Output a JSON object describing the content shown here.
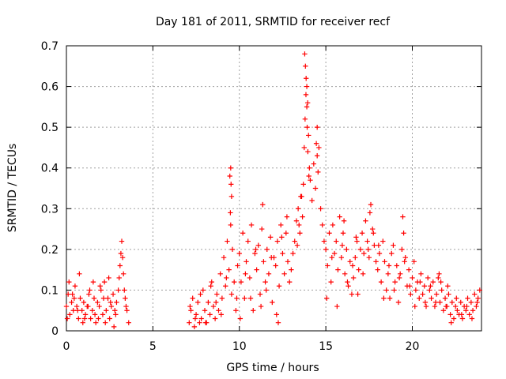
{
  "chart_data": {
    "type": "scatter",
    "title": "Day 181 of 2011, SRMTID for receiver recf",
    "xlabel": "GPS time / hours",
    "ylabel": "SRMTID / TECUs",
    "xlim": [
      0,
      24
    ],
    "ylim": [
      0,
      0.7
    ],
    "xticks": [
      0,
      5,
      10,
      15,
      20
    ],
    "xtick_labels": [
      "0",
      "5",
      "10",
      "15",
      "20"
    ],
    "yticks": [
      0,
      0.1,
      0.2,
      0.3,
      0.4,
      0.5,
      0.6,
      0.7
    ],
    "ytick_labels": [
      "0",
      "0.1",
      "0.2",
      "0.3",
      "0.4",
      "0.5",
      "0.6",
      "0.7"
    ],
    "grid": true,
    "marker": "plus",
    "color": "#ff0000",
    "series": [
      {
        "x": [
          0.0,
          0.1,
          0.2,
          0.3,
          0.4,
          0.5,
          0.6,
          0.7,
          0.8,
          0.9,
          1.0,
          1.1,
          1.2,
          1.3,
          1.4,
          1.5,
          1.6,
          1.7,
          1.8,
          1.9,
          2.0,
          2.1,
          2.2,
          2.3,
          2.4,
          2.5,
          2.6,
          2.7,
          2.8,
          2.9,
          3.0,
          3.05,
          3.1,
          3.15,
          3.2,
          3.25,
          3.3,
          3.35,
          3.4,
          3.5,
          3.6,
          0.15,
          0.45,
          0.75,
          1.05,
          1.35,
          1.65,
          1.95,
          2.25,
          2.55,
          2.85,
          0.05,
          0.35,
          0.65,
          0.95,
          1.25,
          1.55,
          1.85,
          2.15,
          2.45,
          2.75,
          3.45,
          7.1,
          7.2,
          7.3,
          7.4,
          7.5,
          7.6,
          7.7,
          7.8,
          7.9,
          8.0,
          8.1,
          8.2,
          8.3,
          8.4,
          8.5,
          8.6,
          8.7,
          8.8,
          8.9,
          9.0,
          9.1,
          9.2,
          9.3,
          9.4,
          9.5,
          9.6,
          9.7,
          9.8,
          9.9,
          7.15,
          7.45,
          7.75,
          8.05,
          8.35,
          8.65,
          8.95,
          9.25,
          9.55,
          9.85,
          9.5,
          9.45,
          9.55,
          9.48,
          9.52,
          10.0,
          10.1,
          10.2,
          10.3,
          10.4,
          10.5,
          10.6,
          10.7,
          10.8,
          10.9,
          11.0,
          11.1,
          11.2,
          11.3,
          11.4,
          11.5,
          11.6,
          11.7,
          11.8,
          11.9,
          12.0,
          12.1,
          12.2,
          12.3,
          12.4,
          12.5,
          12.6,
          12.7,
          12.8,
          12.9,
          10.05,
          10.35,
          10.65,
          10.95,
          11.25,
          11.55,
          11.85,
          12.15,
          12.45,
          12.75,
          11.35,
          12.25,
          13.0,
          13.1,
          13.2,
          13.3,
          13.4,
          13.5,
          13.6,
          13.7,
          13.75,
          13.8,
          13.85,
          13.9,
          13.95,
          14.0,
          14.05,
          14.1,
          14.2,
          14.3,
          14.4,
          14.5,
          14.6,
          14.7,
          14.8,
          14.9,
          13.78,
          13.82,
          13.86,
          13.9,
          13.92,
          13.96,
          14.02,
          14.45,
          14.5,
          14.55,
          13.65,
          13.55,
          13.45,
          13.35,
          15.0,
          15.1,
          15.2,
          15.3,
          15.4,
          15.5,
          15.6,
          15.7,
          15.8,
          15.9,
          16.0,
          16.1,
          16.2,
          16.3,
          16.4,
          16.5,
          16.6,
          16.7,
          16.8,
          16.9,
          17.0,
          17.1,
          17.2,
          17.3,
          17.4,
          17.5,
          17.6,
          17.7,
          17.8,
          17.9,
          15.05,
          15.35,
          15.65,
          15.95,
          16.25,
          16.55,
          16.85,
          17.15,
          17.45,
          17.75,
          16.05,
          16.75,
          17.55,
          18.0,
          18.1,
          18.2,
          18.3,
          18.4,
          18.5,
          18.6,
          18.7,
          18.8,
          18.9,
          19.0,
          19.1,
          19.2,
          19.3,
          19.4,
          19.5,
          19.6,
          19.7,
          19.8,
          19.9,
          20.0,
          20.1,
          20.2,
          20.3,
          20.4,
          20.5,
          20.6,
          20.7,
          20.8,
          20.9,
          18.05,
          18.35,
          18.65,
          18.95,
          19.25,
          19.55,
          19.85,
          20.15,
          20.45,
          20.75,
          19.45,
          21.0,
          21.1,
          21.2,
          21.3,
          21.4,
          21.5,
          21.6,
          21.7,
          21.8,
          21.9,
          22.0,
          22.1,
          22.2,
          22.3,
          22.4,
          22.5,
          22.6,
          22.7,
          22.8,
          22.9,
          23.0,
          23.1,
          23.2,
          23.3,
          23.4,
          23.5,
          23.6,
          23.7,
          23.8,
          23.9,
          21.05,
          21.35,
          21.65,
          21.95,
          22.25,
          22.55,
          22.85,
          23.15,
          23.45,
          23.75,
          21.55,
          22.05
        ],
        "y": [
          0.06,
          0.09,
          0.04,
          0.07,
          0.05,
          0.11,
          0.06,
          0.03,
          0.08,
          0.05,
          0.07,
          0.04,
          0.06,
          0.09,
          0.03,
          0.05,
          0.08,
          0.02,
          0.07,
          0.06,
          0.1,
          0.04,
          0.12,
          0.05,
          0.08,
          0.03,
          0.06,
          0.09,
          0.05,
          0.07,
          0.1,
          0.13,
          0.16,
          0.19,
          0.22,
          0.18,
          0.14,
          0.1,
          0.08,
          0.05,
          0.02,
          0.12,
          0.08,
          0.14,
          0.03,
          0.1,
          0.04,
          0.11,
          0.02,
          0.07,
          0.04,
          0.03,
          0.09,
          0.05,
          0.02,
          0.06,
          0.12,
          0.03,
          0.08,
          0.13,
          0.01,
          0.06,
          0.02,
          0.05,
          0.08,
          0.01,
          0.04,
          0.07,
          0.02,
          0.03,
          0.1,
          0.05,
          0.02,
          0.07,
          0.04,
          0.12,
          0.06,
          0.03,
          0.09,
          0.05,
          0.14,
          0.08,
          0.18,
          0.11,
          0.22,
          0.15,
          0.26,
          0.2,
          0.12,
          0.05,
          0.16,
          0.06,
          0.03,
          0.09,
          0.02,
          0.11,
          0.07,
          0.04,
          0.13,
          0.09,
          0.08,
          0.4,
          0.38,
          0.33,
          0.29,
          0.36,
          0.19,
          0.12,
          0.24,
          0.08,
          0.17,
          0.22,
          0.13,
          0.26,
          0.05,
          0.19,
          0.15,
          0.21,
          0.09,
          0.25,
          0.17,
          0.12,
          0.2,
          0.14,
          0.23,
          0.07,
          0.18,
          0.16,
          0.22,
          0.11,
          0.26,
          0.19,
          0.14,
          0.24,
          0.17,
          0.12,
          0.03,
          0.14,
          0.08,
          0.2,
          0.06,
          0.1,
          0.18,
          0.04,
          0.23,
          0.28,
          0.31,
          0.02,
          0.15,
          0.19,
          0.22,
          0.27,
          0.3,
          0.24,
          0.33,
          0.36,
          0.45,
          0.52,
          0.58,
          0.6,
          0.56,
          0.48,
          0.4,
          0.37,
          0.32,
          0.41,
          0.35,
          0.5,
          0.45,
          0.3,
          0.26,
          0.22,
          0.68,
          0.65,
          0.62,
          0.55,
          0.5,
          0.44,
          0.38,
          0.46,
          0.43,
          0.39,
          0.28,
          0.33,
          0.26,
          0.21,
          0.2,
          0.16,
          0.24,
          0.12,
          0.26,
          0.19,
          0.22,
          0.15,
          0.28,
          0.18,
          0.24,
          0.14,
          0.2,
          0.11,
          0.17,
          0.09,
          0.13,
          0.18,
          0.22,
          0.15,
          0.2,
          0.24,
          0.19,
          0.27,
          0.22,
          0.18,
          0.31,
          0.25,
          0.21,
          0.17,
          0.08,
          0.18,
          0.06,
          0.21,
          0.12,
          0.16,
          0.09,
          0.14,
          0.2,
          0.24,
          0.27,
          0.23,
          0.29,
          0.15,
          0.19,
          0.12,
          0.22,
          0.17,
          0.1,
          0.14,
          0.08,
          0.19,
          0.21,
          0.12,
          0.16,
          0.07,
          0.14,
          0.2,
          0.24,
          0.18,
          0.11,
          0.15,
          0.09,
          0.13,
          0.17,
          0.1,
          0.12,
          0.08,
          0.14,
          0.09,
          0.11,
          0.06,
          0.13,
          0.21,
          0.08,
          0.16,
          0.1,
          0.13,
          0.17,
          0.11,
          0.06,
          0.12,
          0.07,
          0.28,
          0.1,
          0.08,
          0.12,
          0.06,
          0.09,
          0.13,
          0.07,
          0.1,
          0.05,
          0.08,
          0.06,
          0.09,
          0.04,
          0.07,
          0.03,
          0.06,
          0.05,
          0.04,
          0.07,
          0.03,
          0.06,
          0.05,
          0.08,
          0.04,
          0.07,
          0.05,
          0.09,
          0.06,
          0.08,
          0.1,
          0.11,
          0.07,
          0.12,
          0.06,
          0.02,
          0.08,
          0.04,
          0.06,
          0.03,
          0.07,
          0.14,
          0.11
        ]
      }
    ]
  }
}
